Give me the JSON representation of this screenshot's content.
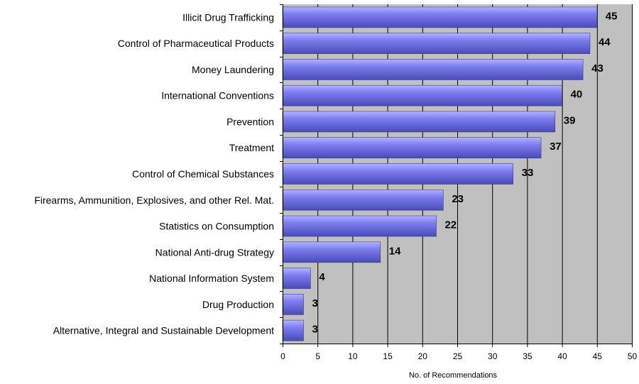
{
  "chart_data": {
    "type": "bar",
    "orientation": "horizontal",
    "categories": [
      "Illicit Drug Trafficking",
      "Control of Pharmaceutical Products",
      "Money Laundering",
      "International Conventions",
      "Prevention",
      "Treatment",
      "Control of Chemical Substances",
      "Firearms, Ammunition, Explosives, and other Rel. Mat.",
      "Statistics on Consumption",
      "National Anti-drug Strategy",
      "National Information System",
      "Drug Production",
      "Alternative, Integral and Sustainable Development"
    ],
    "values": [
      45,
      44,
      43,
      40,
      39,
      37,
      33,
      23,
      22,
      14,
      4,
      3,
      3
    ],
    "xlabel": "No. of Recommendations",
    "xlim": [
      0,
      50
    ],
    "xticks": [
      0,
      5,
      10,
      15,
      20,
      25,
      30,
      35,
      40,
      45,
      50
    ],
    "grid": "vertical",
    "data_labels": true,
    "colors": {
      "bar_light": "#b3b3ff",
      "bar_main": "#7d7df0",
      "bar_dark": "#4a4ab8",
      "plot_background": "#c0c0c0",
      "gridline": "#000000"
    }
  }
}
